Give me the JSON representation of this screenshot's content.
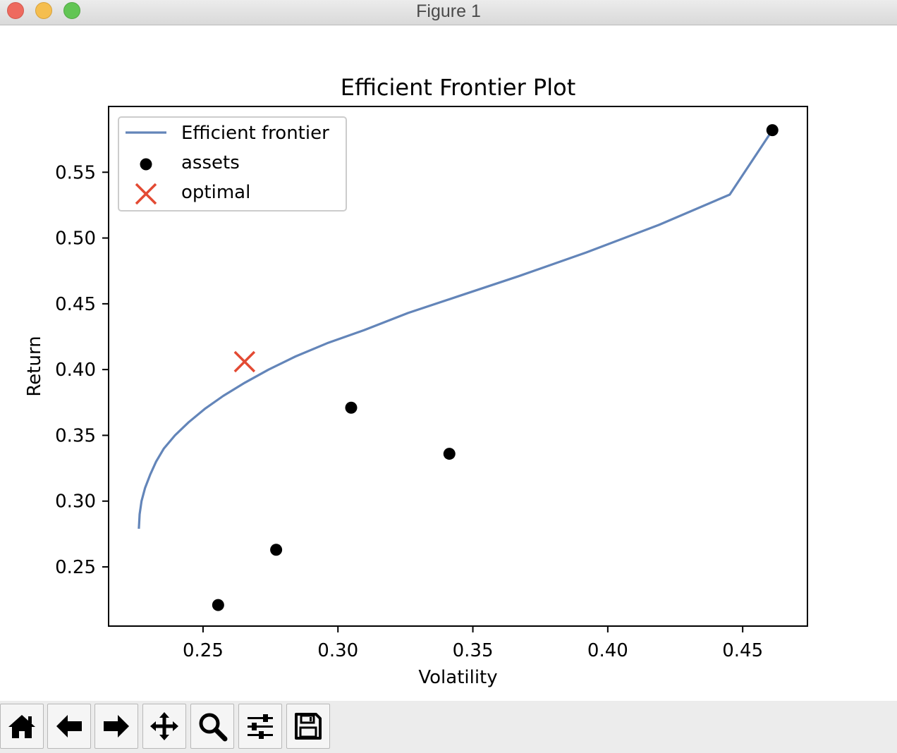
{
  "window": {
    "title": "Figure 1"
  },
  "chart_data": {
    "type": "line",
    "title": "Efficient Frontier Plot",
    "xlabel": "Volatility",
    "ylabel": "Return",
    "xlim": [
      0.215,
      0.474
    ],
    "ylim": [
      0.205,
      0.6
    ],
    "xticks": [
      0.25,
      0.3,
      0.35,
      0.4,
      0.45
    ],
    "xtick_labels": [
      "0.25",
      "0.30",
      "0.35",
      "0.40",
      "0.45"
    ],
    "yticks": [
      0.25,
      0.3,
      0.35,
      0.4,
      0.45,
      0.5,
      0.55
    ],
    "ytick_labels": [
      "0.25",
      "0.30",
      "0.35",
      "0.40",
      "0.45",
      "0.50",
      "0.55"
    ],
    "grid": false,
    "legend_position": "top-left",
    "series": [
      {
        "name": "Efficient frontier",
        "kind": "line",
        "color": "#6385b9",
        "x": [
          0.2262,
          0.2265,
          0.2272,
          0.2285,
          0.2304,
          0.2326,
          0.2355,
          0.2396,
          0.2447,
          0.2506,
          0.2575,
          0.2655,
          0.2743,
          0.2843,
          0.296,
          0.3097,
          0.326,
          0.345,
          0.367,
          0.392,
          0.419,
          0.4452,
          0.461
        ],
        "y": [
          0.279,
          0.29,
          0.3,
          0.31,
          0.32,
          0.33,
          0.34,
          0.35,
          0.36,
          0.37,
          0.38,
          0.39,
          0.4,
          0.41,
          0.42,
          0.43,
          0.443,
          0.456,
          0.471,
          0.489,
          0.51,
          0.533,
          0.582
        ]
      },
      {
        "name": "assets",
        "kind": "scatter",
        "color": "#000000",
        "x": [
          0.2556,
          0.2771,
          0.3049,
          0.3413,
          0.461
        ],
        "y": [
          0.221,
          0.263,
          0.371,
          0.336,
          0.582
        ]
      },
      {
        "name": "optimal",
        "kind": "marker-x",
        "color": "#e34a33",
        "x": [
          0.2654
        ],
        "y": [
          0.406
        ]
      }
    ]
  },
  "toolbar": {
    "buttons": [
      {
        "name": "home-button",
        "icon": "home-icon"
      },
      {
        "name": "back-button",
        "icon": "arrow-left-icon"
      },
      {
        "name": "forward-button",
        "icon": "arrow-right-icon"
      },
      {
        "name": "pan-button",
        "icon": "move-icon"
      },
      {
        "name": "zoom-button",
        "icon": "magnifier-icon"
      },
      {
        "name": "configure-subplots-button",
        "icon": "sliders-icon"
      },
      {
        "name": "save-button",
        "icon": "floppy-disk-icon"
      }
    ]
  }
}
